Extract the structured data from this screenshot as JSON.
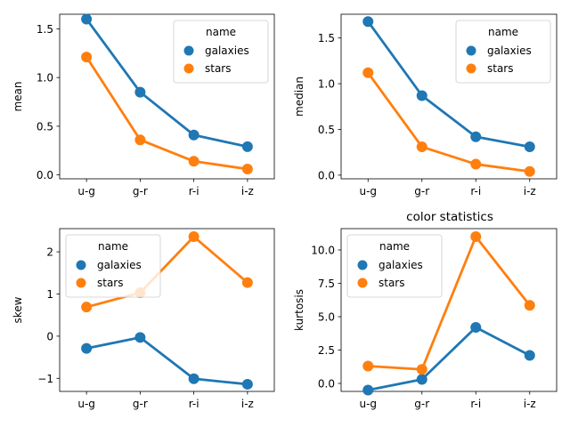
{
  "figure_title": "color statistics",
  "legend_title": "name",
  "colors": {
    "galaxies": "#1f77b4",
    "stars": "#ff7f0e"
  },
  "chart_data": [
    {
      "type": "line",
      "ylabel": "mean",
      "categories": [
        "u-g",
        "g-r",
        "r-i",
        "i-z"
      ],
      "ylim": [
        -0.04,
        1.65
      ],
      "yticks": [
        0.0,
        0.5,
        1.0,
        1.5
      ],
      "ytick_labels": [
        "0.0",
        "0.5",
        "1.0",
        "1.5"
      ],
      "legend_loc": "top-right",
      "series": [
        {
          "name": "galaxies",
          "values": [
            1.6,
            0.85,
            0.41,
            0.29
          ]
        },
        {
          "name": "stars",
          "values": [
            1.21,
            0.36,
            0.14,
            0.06
          ]
        }
      ]
    },
    {
      "type": "line",
      "ylabel": "median",
      "categories": [
        "u-g",
        "g-r",
        "r-i",
        "i-z"
      ],
      "ylim": [
        -0.04,
        1.76
      ],
      "yticks": [
        0.0,
        0.5,
        1.0,
        1.5
      ],
      "ytick_labels": [
        "0.0",
        "0.5",
        "1.0",
        "1.5"
      ],
      "legend_loc": "top-right",
      "series": [
        {
          "name": "galaxies",
          "values": [
            1.68,
            0.87,
            0.42,
            0.31
          ]
        },
        {
          "name": "stars",
          "values": [
            1.12,
            0.31,
            0.12,
            0.04
          ]
        }
      ]
    },
    {
      "type": "line",
      "ylabel": "skew",
      "categories": [
        "u-g",
        "g-r",
        "r-i",
        "i-z"
      ],
      "ylim": [
        -1.31,
        2.55
      ],
      "yticks": [
        -1,
        0,
        1,
        2
      ],
      "ytick_labels": [
        "−1",
        "0",
        "1",
        "2"
      ],
      "legend_loc": "top-left",
      "series": [
        {
          "name": "galaxies",
          "values": [
            -0.29,
            -0.03,
            -1.01,
            -1.14
          ]
        },
        {
          "name": "stars",
          "values": [
            0.69,
            1.03,
            2.36,
            1.27
          ]
        }
      ]
    },
    {
      "type": "line",
      "ylabel": "kurtosis",
      "categories": [
        "u-g",
        "g-r",
        "r-i",
        "i-z"
      ],
      "ylim": [
        -0.6,
        11.6
      ],
      "yticks": [
        0.0,
        2.5,
        5.0,
        7.5,
        10.0
      ],
      "ytick_labels": [
        "0.0",
        "2.5",
        "5.0",
        "7.5",
        "10.0"
      ],
      "legend_loc": "top-left",
      "series": [
        {
          "name": "galaxies",
          "values": [
            -0.5,
            0.3,
            4.2,
            2.1
          ]
        },
        {
          "name": "stars",
          "values": [
            1.3,
            1.05,
            11.0,
            5.85
          ]
        }
      ]
    }
  ]
}
